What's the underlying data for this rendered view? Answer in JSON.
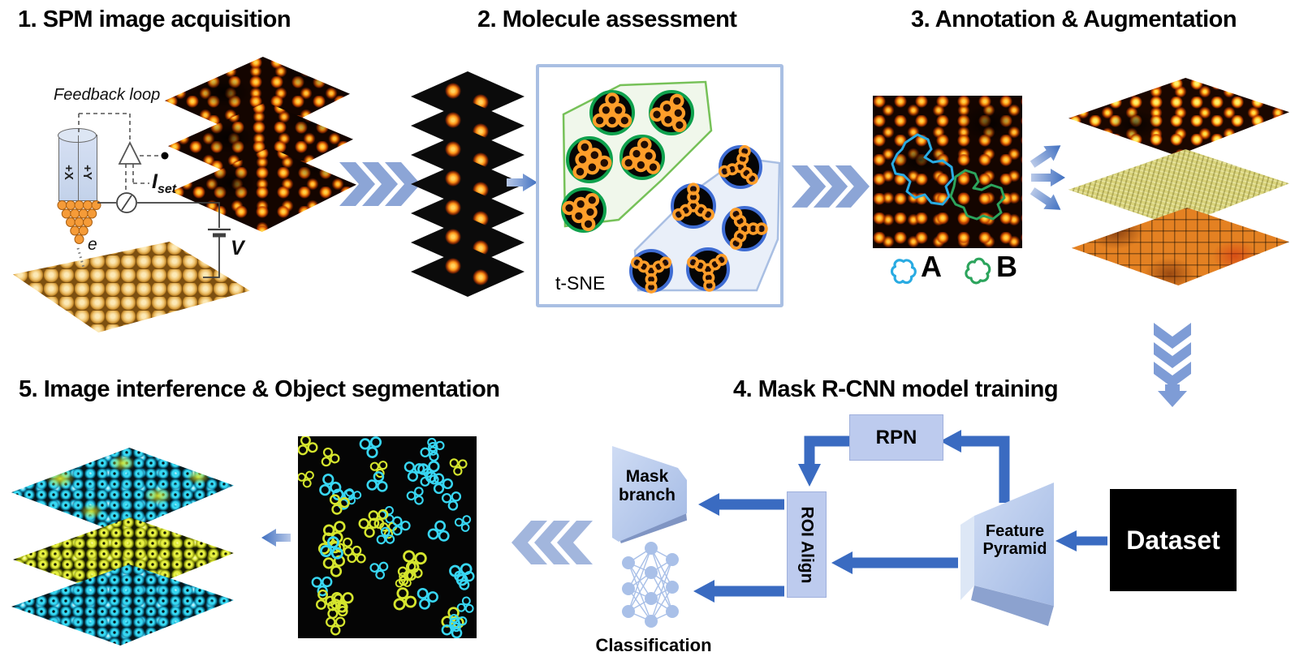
{
  "step1": {
    "title": "1. SPM image acquisition",
    "feedback_loop_label": "Feedback loop",
    "current_setpoint_base": "I",
    "current_setpoint_sub": "set",
    "bias_voltage_label": "V",
    "electron_label": "e",
    "piezo_x_label": "+X",
    "piezo_y_label": "+Y"
  },
  "step2": {
    "title": "2. Molecule assessment",
    "plot_method_label": "t-SNE"
  },
  "step3": {
    "title": "3. Annotation & Augmentation",
    "class_a_label": "A",
    "class_b_label": "B"
  },
  "step4": {
    "title": "4. Mask R-CNN model training",
    "rpn_label": "RPN",
    "roi_align_label": "ROI Align",
    "mask_branch_label": "Mask branch",
    "classification_label": "Classification",
    "feature_pyramid_label": "Feature Pyramid",
    "dataset_label": "Dataset"
  },
  "step5": {
    "title": "5. Image interference & Object segmentation"
  },
  "colors": {
    "arrow_blue": "#3A6BC1",
    "chevron_blue": "#8CA5D6",
    "chevron_light": "#A2B6DD",
    "down_chevron": "#7E9CD6",
    "node_fill": "#BDCBEE",
    "dataset_bg": "#000000",
    "dataset_text": "#FFFFFF",
    "tsne_border": "#A9BFE3",
    "cluster_green_stroke": "#76C158",
    "cluster_blue_stroke": "#A9BFE3",
    "ring_green": "#0FA14D",
    "ring_blue": "#3E6CD3",
    "molecule_orange": "#FF9E2A",
    "class_a_cyan": "#29ABE2",
    "class_b_green": "#2CA45C",
    "segment_cyan": "#38D6F2",
    "segment_yellow": "#D5E52E",
    "gold_substrate": "#D9A441"
  }
}
